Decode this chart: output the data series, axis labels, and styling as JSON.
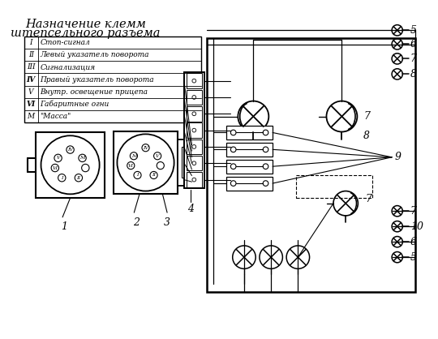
{
  "title_line1": "Назначение клемм",
  "title_line2": "штепсельного разъема",
  "table_rows": [
    [
      "I",
      "Стоп-сигнал"
    ],
    [
      "II",
      "Левый указатель поворота"
    ],
    [
      "III",
      "Сигнализация"
    ],
    [
      "IV",
      "Правый указатель поворота"
    ],
    [
      "V",
      "Внутр. освещение прицепа"
    ],
    [
      "VI",
      "Габаритные огни"
    ],
    [
      "М",
      "\"Масса\""
    ]
  ],
  "bg_color": "#ffffff"
}
